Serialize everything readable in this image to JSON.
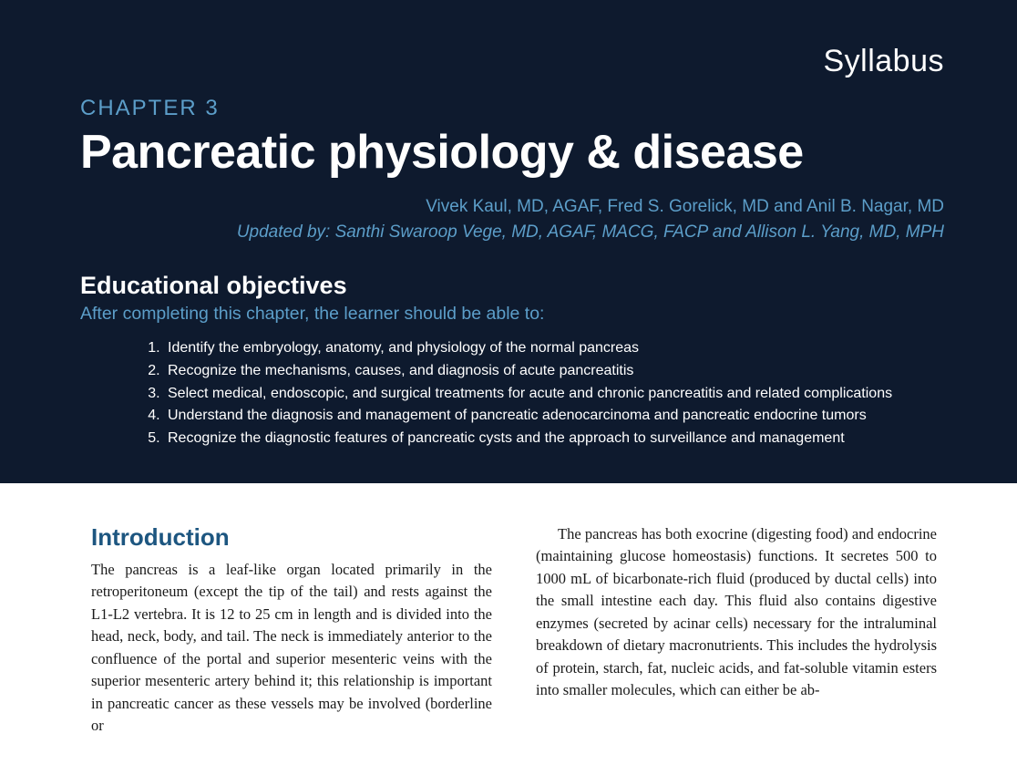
{
  "header": {
    "syllabus_label": "Syllabus",
    "chapter_label": "CHAPTER 3",
    "chapter_title": "Pancreatic physiology & disease",
    "authors_line": "Vivek Kaul, MD, AGAF, Fred S. Gorelick, MD and Anil B. Nagar, MD",
    "updated_line": "Updated by: Santhi Swaroop Vege, MD, AGAF, MACG, FACP and Allison L. Yang, MD, MPH",
    "objectives_heading": "Educational objectives",
    "objectives_sub": "After completing this chapter, the learner should be able to:",
    "objectives": [
      "Identify the embryology, anatomy, and physiology of the normal pancreas",
      "Recognize the mechanisms, causes, and diagnosis of acute pancreatitis",
      "Select medical, endoscopic, and surgical treatments for acute and chronic pancreatitis and related complications",
      "Understand the diagnosis and management of pancreatic adenocarcinoma and pancreatic endocrine tumors",
      "Recognize the diagnostic features of pancreatic cysts and the approach to surveillance and management"
    ]
  },
  "body": {
    "intro_heading": "Introduction",
    "col1_text": "The pancreas is a leaf-like organ located primarily in the retroperitoneum (except the tip of the tail) and rests against the L1-L2 vertebra. It is 12 to 25 cm in length and is divided into the head, neck, body, and tail. The neck is immediately anterior to the confluence of the portal and superior mesenteric veins with the superior mesenteric artery behind it; this relationship is important in pancre­atic cancer as these vessels may be involved (borderline or",
    "col2_text": "The pancreas has both exocrine (digesting food) and endocrine (maintaining glucose homeostasis) functions. It secretes 500 to 1000 mL of bicarbonate-rich fluid (pro­duced by ductal cells) into the small intestine each day. This fluid also contains digestive enzymes (secreted by acinar cells) necessary for the intraluminal breakdown of dietary macronutrients. This includes the hydrolysis of protein, starch, fat, nucleic acids, and fat-soluble vita­min esters into smaller molecules, which can either be ab-"
  },
  "colors": {
    "header_bg": "#0e1a2e",
    "accent_blue": "#5c9ec9",
    "intro_heading": "#1d5680",
    "body_text": "#1a1a1a",
    "page_bg": "#ffffff"
  },
  "typography": {
    "syllabus_fontsize": 34,
    "chapter_label_fontsize": 24,
    "chapter_title_fontsize": 52,
    "authors_fontsize": 19,
    "objectives_heading_fontsize": 27,
    "objectives_sub_fontsize": 19.5,
    "objectives_list_fontsize": 16,
    "intro_heading_fontsize": 26,
    "body_fontsize": 16.5
  }
}
